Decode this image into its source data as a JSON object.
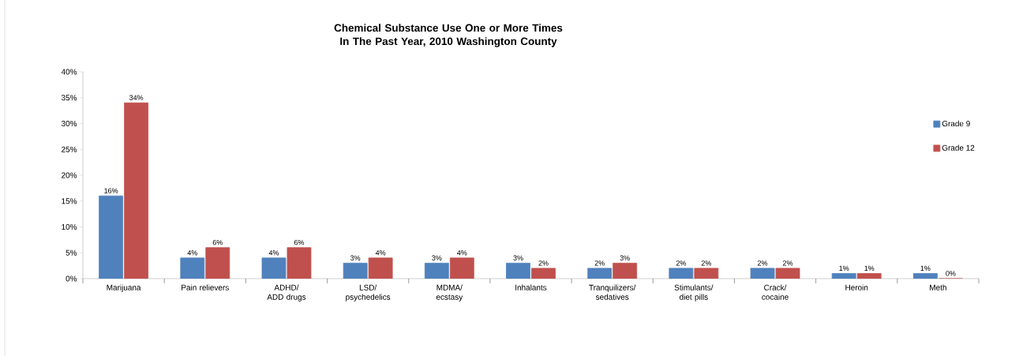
{
  "chart_data": {
    "type": "bar",
    "title": "Chemical Substance Use One or More Times In The Past Year, 2010 Washington County",
    "categories": [
      "Marijuana",
      "Pain relievers",
      "ADHD/ ADD drugs",
      "LSD/ psychedelics",
      "MDMA/ ecstasy",
      "Inhalants",
      "Tranquilizers/ sedatives",
      "Stimulants/ diet pills",
      "Crack/ cocaine",
      "Heroin",
      "Meth"
    ],
    "series": [
      {
        "name": "Grade 9",
        "color": "#4f81bd",
        "values": [
          16,
          4,
          4,
          3,
          3,
          3,
          2,
          2,
          2,
          1,
          1
        ],
        "value_labels": [
          "16%",
          "4%",
          "4%",
          "3%",
          "3%",
          "3%",
          "2%",
          "2%",
          "2%",
          "1%",
          "1%"
        ]
      },
      {
        "name": "Grade 12",
        "color": "#c0504d",
        "values": [
          34,
          6,
          6,
          4,
          4,
          2,
          3,
          2,
          2,
          1,
          0
        ],
        "value_labels": [
          "34%",
          "6%",
          "6%",
          "4%",
          "4%",
          "2%",
          "3%",
          "2%",
          "2%",
          "1%",
          "0%"
        ]
      }
    ],
    "ylim": [
      0,
      40
    ],
    "yticks": [
      {
        "value": 0,
        "label": "0%"
      },
      {
        "value": 5,
        "label": "5%"
      },
      {
        "value": 10,
        "label": "10%"
      },
      {
        "value": 15,
        "label": "15%"
      },
      {
        "value": 20,
        "label": "20%"
      },
      {
        "value": 25,
        "label": "25%"
      },
      {
        "value": 30,
        "label": "30%"
      },
      {
        "value": 35,
        "label": "35%"
      },
      {
        "value": 40,
        "label": "40%"
      }
    ],
    "legend": "right",
    "grid": false
  }
}
